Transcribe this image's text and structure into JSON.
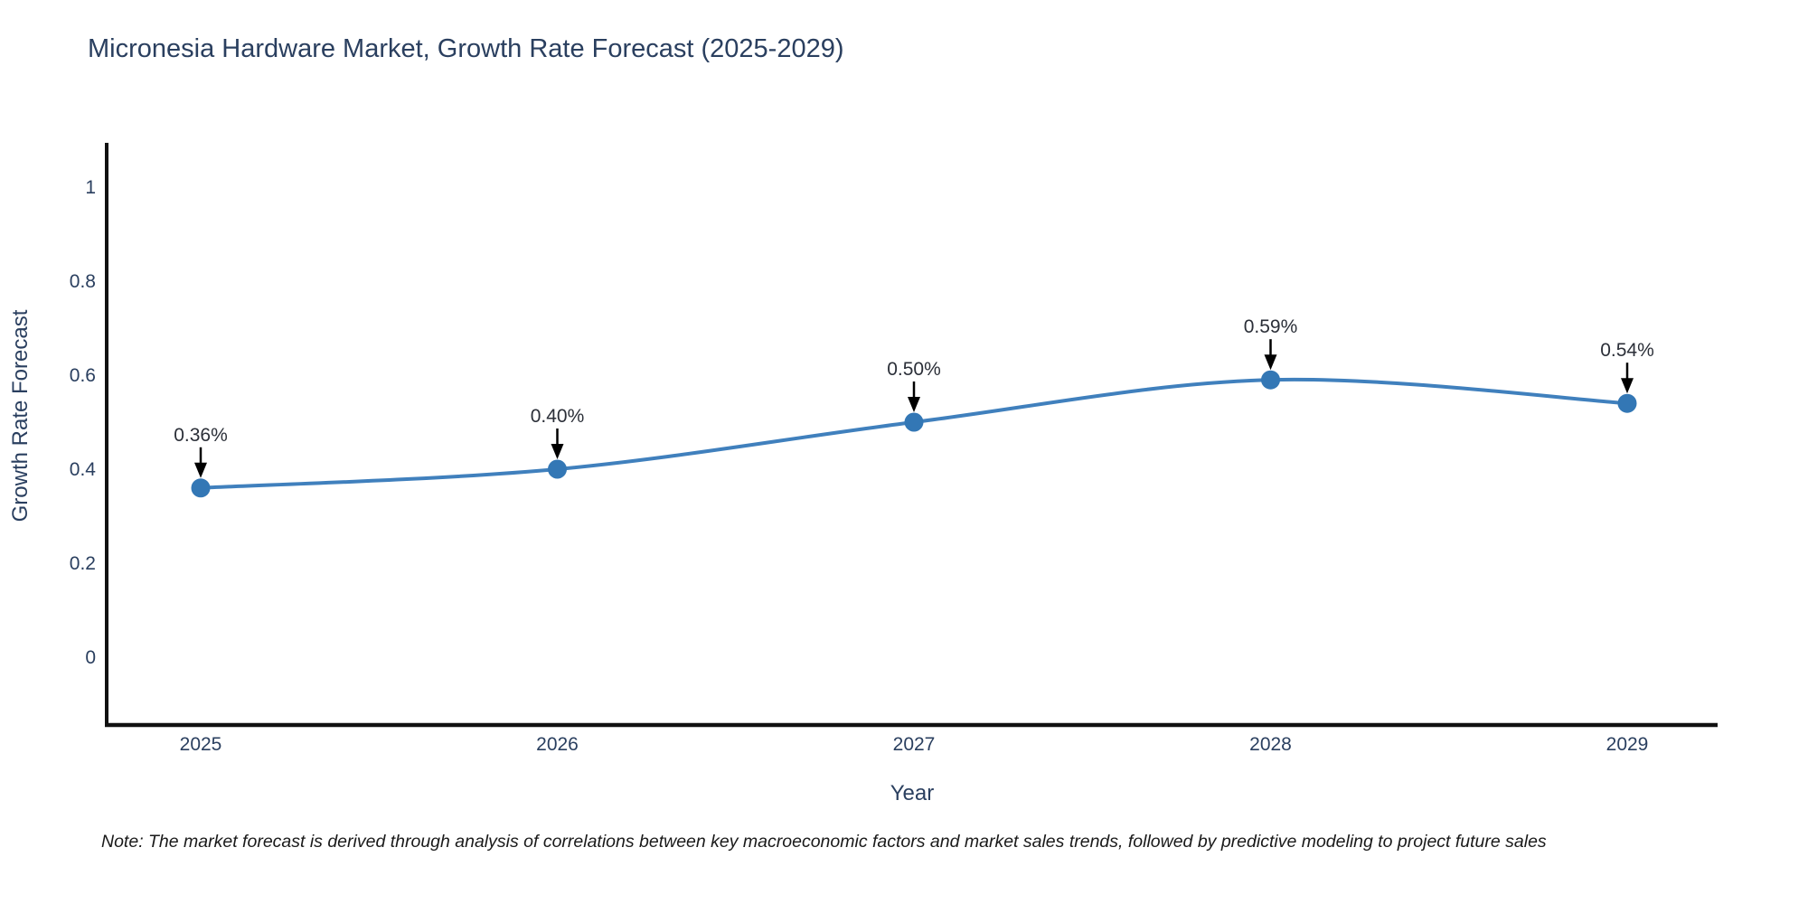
{
  "title": "Micronesia Hardware Market, Growth Rate Forecast (2025-2029)",
  "note": "Note: The market forecast is derived through analysis of correlations between key macroeconomic factors and market sales trends, followed by predictive modeling to project future sales",
  "chart_data": {
    "type": "line",
    "line_shape": "spline",
    "grid": false,
    "legend_position": "none",
    "title": "Micronesia Hardware Market, Growth Rate Forecast (2025-2029)",
    "xlabel": "Year",
    "ylabel": "Growth Rate Forecast",
    "x": [
      2025,
      2026,
      2027,
      2028,
      2029
    ],
    "series": [
      {
        "name": "Growth Rate Forecast",
        "values": [
          0.36,
          0.4,
          0.5,
          0.59,
          0.54
        ]
      }
    ],
    "point_labels": [
      "0.36%",
      "0.40%",
      "0.50%",
      "0.59%",
      "0.54%"
    ],
    "xticks": [
      "2025",
      "2026",
      "2027",
      "2028",
      "2029"
    ],
    "yticks": [
      0,
      0.2,
      0.4,
      0.6,
      0.8,
      1
    ],
    "ytick_labels": [
      "0",
      "0.2",
      "0.4",
      "0.6",
      "0.8",
      "1"
    ],
    "ylim": [
      -0.144,
      1.094
    ],
    "xlim": [
      2024.74,
      2029.25
    ],
    "colors": {
      "line": "#4080bd",
      "marker": "#3377b5",
      "axis_line": "#111111",
      "chart_text": "#2a3f5f",
      "annotation_text": "#2b2f38",
      "annotation_arrow": "#000000",
      "background": "#ffffff"
    }
  }
}
